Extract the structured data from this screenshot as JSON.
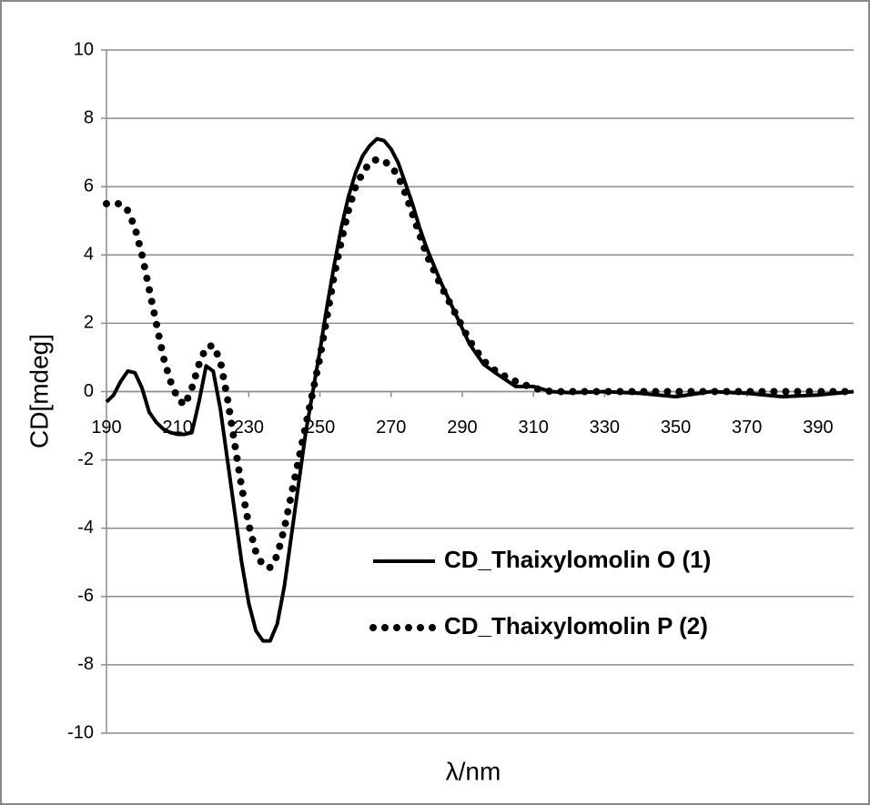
{
  "chart_data": {
    "type": "line",
    "x_label": "λ/nm",
    "y_label": "CD[mdeg]",
    "x": [
      190,
      192,
      194,
      196,
      198,
      200,
      202,
      204,
      206,
      208,
      210,
      212,
      214,
      216,
      218,
      220,
      222,
      224,
      226,
      228,
      230,
      232,
      234,
      236,
      238,
      240,
      242,
      244,
      246,
      248,
      250,
      252,
      254,
      256,
      258,
      260,
      262,
      264,
      266,
      268,
      270,
      272,
      274,
      276,
      278,
      280,
      284,
      288,
      292,
      296,
      300,
      305,
      310,
      315,
      320,
      330,
      340,
      350,
      360,
      370,
      380,
      390,
      400
    ],
    "series": [
      {
        "name": "CD_Thaixylomolin O (1)",
        "color": "#000000",
        "style": "solid",
        "values": [
          -0.3,
          -0.1,
          0.3,
          0.6,
          0.55,
          0.1,
          -0.6,
          -0.9,
          -1.1,
          -1.2,
          -1.25,
          -1.25,
          -1.2,
          -0.3,
          0.75,
          0.6,
          -0.5,
          -2.0,
          -3.5,
          -5.0,
          -6.2,
          -7.0,
          -7.3,
          -7.3,
          -6.8,
          -5.7,
          -4.2,
          -2.7,
          -1.2,
          0.0,
          1.2,
          2.5,
          3.7,
          4.8,
          5.7,
          6.4,
          6.9,
          7.2,
          7.4,
          7.35,
          7.1,
          6.7,
          6.1,
          5.5,
          4.8,
          4.2,
          3.2,
          2.3,
          1.4,
          0.8,
          0.5,
          0.15,
          0.15,
          0.0,
          -0.03,
          0.0,
          -0.05,
          -0.15,
          0.0,
          -0.05,
          -0.15,
          -0.1,
          0.0
        ]
      },
      {
        "name": "CD_Thaixylomolin P (2)",
        "color": "#000000",
        "style": "dotted",
        "values": [
          5.5,
          5.5,
          5.5,
          5.3,
          4.8,
          4.0,
          3.0,
          2.0,
          1.0,
          0.3,
          -0.2,
          -0.4,
          0.1,
          0.8,
          1.3,
          1.35,
          0.9,
          -0.2,
          -1.5,
          -2.8,
          -3.9,
          -4.7,
          -5.1,
          -5.15,
          -4.8,
          -4.0,
          -3.0,
          -2.0,
          -1.0,
          0.0,
          1.0,
          2.2,
          3.4,
          4.4,
          5.3,
          6.0,
          6.4,
          6.7,
          6.8,
          6.75,
          6.6,
          6.3,
          5.8,
          5.2,
          4.6,
          4.0,
          3.1,
          2.3,
          1.5,
          0.9,
          0.55,
          0.3,
          0.1,
          0.0,
          0.0,
          0.0,
          0.0,
          0.0,
          0.0,
          0.0,
          0.0,
          0.0,
          0.0
        ]
      }
    ],
    "xlim": [
      190,
      400
    ],
    "xticks": [
      190,
      210,
      230,
      250,
      270,
      290,
      310,
      330,
      350,
      370,
      390
    ],
    "ylim": [
      -10,
      10
    ],
    "yticks": [
      -10,
      -8,
      -6,
      -4,
      -2,
      0,
      2,
      4,
      6,
      8,
      10
    ],
    "grid": true
  }
}
